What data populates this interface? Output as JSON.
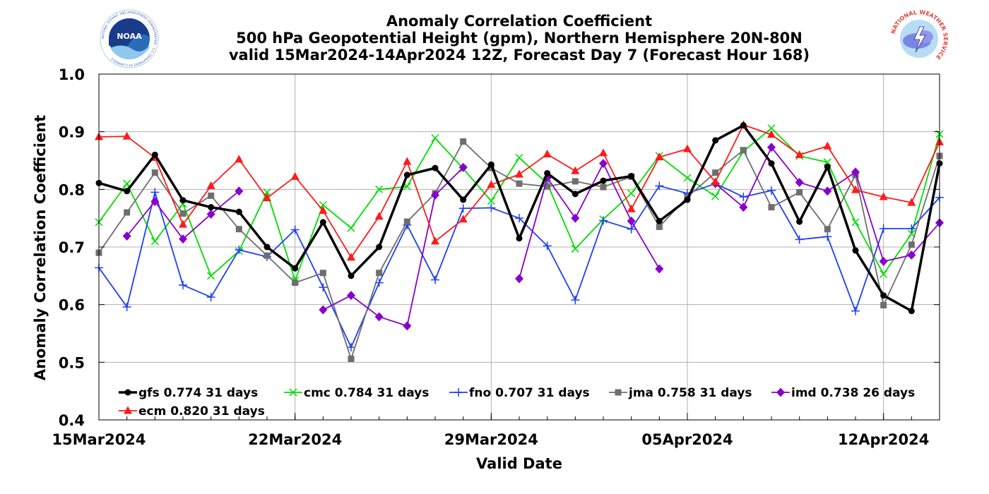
{
  "titles": {
    "line1": "Anomaly Correlation Coefficient",
    "line2": "500 hPa Geopotential Height (gpm), Northern Hemisphere 20N-80N",
    "line3": "valid 15Mar2024-14Apr2024 12Z, Forecast Day 7 (Forecast Hour 168)"
  },
  "logos": {
    "left": {
      "text": "NOAA",
      "ring_text": "NATIONAL OCEANIC AND ATMOSPHERIC ADMINISTRATION · U.S. DEPARTMENT OF COMMERCE",
      "color": "#2b6cb8"
    },
    "right": {
      "ring_text": "NATIONAL WEATHER SERVICE",
      "color": "#e0423c"
    }
  },
  "chart_data": {
    "type": "line",
    "xlabel": "Valid Date",
    "ylabel": "Anomaly Correlation Coefficient",
    "ylim": [
      0.4,
      1.0
    ],
    "yticks": [
      "0.4",
      "0.5",
      "0.6",
      "0.7",
      "0.8",
      "0.9",
      "1.0"
    ],
    "xlim_days": [
      0,
      30
    ],
    "xticks": [
      {
        "day": 0,
        "label": "15Mar2024"
      },
      {
        "day": 7,
        "label": "22Mar2024"
      },
      {
        "day": 14,
        "label": "29Mar2024"
      },
      {
        "day": 21,
        "label": "05Apr2024"
      },
      {
        "day": 28,
        "label": "12Apr2024"
      }
    ],
    "grid": true,
    "legend_position": "bottom-left",
    "series": [
      {
        "name": "gfs",
        "legend": "gfs 0.774 31 days",
        "color": "#000000",
        "marker": "circle",
        "linewidth": 3.5,
        "values": [
          0.811,
          0.797,
          0.86,
          0.781,
          0.769,
          0.761,
          0.7,
          0.663,
          0.743,
          0.65,
          0.7,
          0.825,
          0.837,
          0.782,
          0.843,
          0.715,
          0.828,
          0.792,
          0.815,
          0.823,
          0.745,
          0.782,
          0.885,
          0.911,
          0.845,
          0.744,
          0.839,
          0.694,
          0.616,
          0.589,
          0.845
        ]
      },
      {
        "name": "cmc",
        "legend": "cmc 0.784 31 days",
        "color": "#00dd00",
        "marker": "x",
        "linewidth": 1.8,
        "values": [
          0.743,
          0.81,
          0.71,
          0.775,
          0.65,
          0.693,
          0.795,
          0.642,
          0.773,
          0.733,
          0.8,
          0.805,
          0.889,
          0.836,
          0.78,
          0.855,
          0.81,
          0.697,
          0.748,
          0.793,
          0.858,
          0.82,
          0.788,
          0.866,
          0.906,
          0.858,
          0.847,
          0.743,
          0.653,
          0.723,
          0.896
        ]
      },
      {
        "name": "fno",
        "legend": "fno 0.707 31 days",
        "color": "#1e3ff5",
        "marker": "plus",
        "linewidth": 1.8,
        "values": [
          0.664,
          0.596,
          0.795,
          0.634,
          0.613,
          0.695,
          0.683,
          0.73,
          0.63,
          0.526,
          0.638,
          0.738,
          0.643,
          0.767,
          0.768,
          0.75,
          0.702,
          0.608,
          0.746,
          0.731,
          0.806,
          0.793,
          0.81,
          0.787,
          0.798,
          0.713,
          0.718,
          0.589,
          0.732,
          0.732,
          0.786
        ]
      },
      {
        "name": "jma",
        "legend": "jma 0.758 31 days",
        "color": "#6e6e6e",
        "marker": "square",
        "linewidth": 1.8,
        "values": [
          0.69,
          0.76,
          0.829,
          0.758,
          0.789,
          0.731,
          0.685,
          0.638,
          0.655,
          0.506,
          0.655,
          0.744,
          0.793,
          0.883,
          0.837,
          0.81,
          0.805,
          0.814,
          0.804,
          0.822,
          0.735,
          0.787,
          0.829,
          0.868,
          0.769,
          0.795,
          0.731,
          0.825,
          0.599,
          0.704,
          0.858
        ]
      },
      {
        "name": "imd",
        "legend": "imd 0.738 26 days",
        "color": "#8800cc",
        "marker": "diamond",
        "linewidth": 1.8,
        "values": [
          null,
          0.719,
          0.779,
          0.714,
          0.757,
          0.797,
          null,
          null,
          0.591,
          0.616,
          0.579,
          0.563,
          0.79,
          0.838,
          null,
          0.645,
          0.82,
          0.75,
          0.845,
          0.745,
          0.662,
          null,
          0.81,
          0.769,
          0.873,
          0.812,
          0.797,
          0.83,
          0.675,
          0.686,
          0.742
        ]
      },
      {
        "name": "ecm",
        "legend": "ecm 0.820 31 days",
        "color": "#ff1a1a",
        "marker": "triangle",
        "linewidth": 1.8,
        "values": [
          0.891,
          0.892,
          0.855,
          0.739,
          0.806,
          0.852,
          0.785,
          0.822,
          0.763,
          0.682,
          0.753,
          0.848,
          0.71,
          0.748,
          0.808,
          0.826,
          0.861,
          0.832,
          0.863,
          0.766,
          0.856,
          0.87,
          0.813,
          0.912,
          0.895,
          0.86,
          0.875,
          0.799,
          0.787,
          0.777,
          0.882
        ]
      }
    ]
  }
}
